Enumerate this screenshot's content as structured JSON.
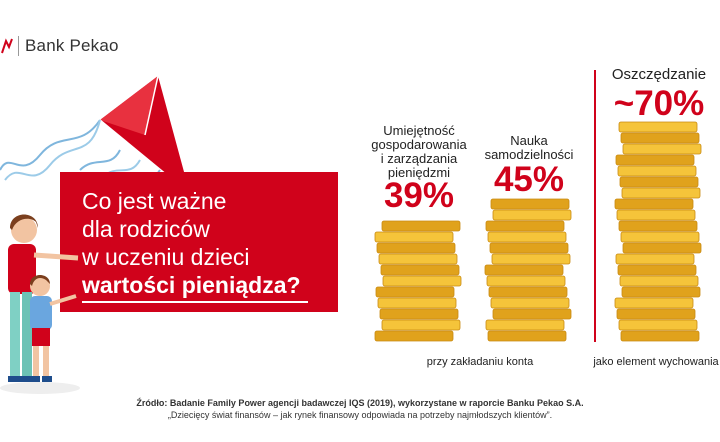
{
  "brand": {
    "name": "Bank Pekao",
    "icon": "pekao-bison-logo",
    "color": "#d0021b"
  },
  "question": {
    "line1": "Co jest ważne",
    "line2": "dla rodziców",
    "line3": "w uczeniu dzieci",
    "line4": "wartości pieniądza?"
  },
  "colors": {
    "accent": "#d0021b",
    "coin": "#f5c43a",
    "coin_dark": "#e0a21c",
    "coin_edge": "#c98a12"
  },
  "chart_data": {
    "type": "bar",
    "title": "Co jest ważne dla rodziców w uczeniu dzieci wartości pieniądza?",
    "categories": [
      "Umiejętność gospodarowania i zarządzania pieniędzmi",
      "Nauka samodzielności",
      "Oszczędzanie"
    ],
    "values": [
      39,
      45,
      70
    ],
    "value_labels": [
      "39%",
      "45%",
      "~70%"
    ],
    "unit": "%",
    "groups": [
      {
        "label": "przy zakładaniu konta",
        "categories": [
          0,
          1
        ]
      },
      {
        "label": "jako element wychowania",
        "categories": [
          2
        ]
      }
    ],
    "ylim": [
      0,
      75
    ]
  },
  "labels": {
    "cat0_line1": "Umiejętność",
    "cat0_line2": "gospodarowania",
    "cat0_line3": "i zarządzania",
    "cat0_line4": "pieniędzmi",
    "cat1_line1": "Nauka",
    "cat1_line2": "samodzielności",
    "cat2_line1": "Oszczędzanie"
  },
  "source": {
    "line1": "Źródło: Badanie Family Power agencji badawczej IQS (2019), wykorzystane w raporcie Banku Pekao S.A.",
    "line2": "„Dziecięcy świat finansów – jak rynek finansowy odpowiada na potrzeby najmłodszych klientów”."
  }
}
